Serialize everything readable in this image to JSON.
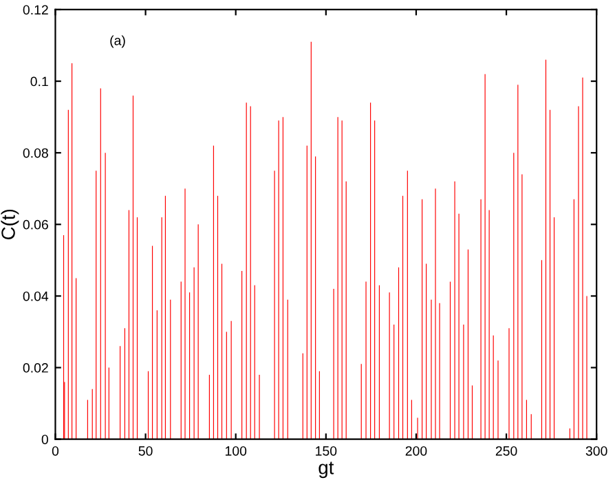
{
  "chart_data": {
    "type": "bar",
    "xlabel": "gt",
    "ylabel": "C(t)",
    "annotations": [
      "(a)"
    ],
    "x": [
      4.6,
      5.1,
      7.2,
      9.2,
      11.5,
      17.9,
      20.5,
      22.6,
      25.1,
      27.7,
      29.7,
      35.9,
      38.5,
      40.8,
      43.1,
      45.4,
      51.5,
      53.8,
      56.4,
      59.0,
      61.0,
      63.8,
      69.7,
      71.9,
      74.4,
      76.9,
      79.2,
      85.4,
      87.7,
      90.0,
      92.3,
      94.9,
      97.5,
      103.4,
      105.9,
      108.2,
      110.5,
      113.1,
      121.5,
      123.8,
      126.2,
      128.8,
      137.2,
      139.5,
      141.8,
      144.2,
      146.4,
      154.3,
      156.6,
      158.9,
      161.2,
      169.6,
      172.2,
      174.7,
      177.0,
      179.6,
      185.2,
      187.7,
      190.3,
      192.6,
      195.2,
      197.5,
      200.8,
      203.3,
      205.6,
      208.4,
      210.7,
      213.0,
      218.9,
      221.4,
      223.7,
      226.3,
      228.8,
      231.1,
      235.9,
      238.2,
      240.5,
      242.8,
      245.4,
      251.5,
      254.1,
      256.4,
      258.7,
      261.2,
      263.8,
      269.6,
      271.9,
      274.2,
      276.5,
      285.2,
      287.5,
      290.0,
      292.3,
      294.6
    ],
    "values": [
      0.057,
      0.016,
      0.092,
      0.105,
      0.045,
      0.011,
      0.014,
      0.075,
      0.098,
      0.08,
      0.02,
      0.026,
      0.031,
      0.064,
      0.096,
      0.062,
      0.019,
      0.054,
      0.036,
      0.062,
      0.068,
      0.039,
      0.044,
      0.07,
      0.041,
      0.048,
      0.06,
      0.018,
      0.082,
      0.068,
      0.049,
      0.03,
      0.033,
      0.047,
      0.094,
      0.093,
      0.043,
      0.018,
      0.075,
      0.089,
      0.09,
      0.039,
      0.024,
      0.082,
      0.111,
      0.079,
      0.019,
      0.042,
      0.09,
      0.089,
      0.072,
      0.021,
      0.044,
      0.094,
      0.089,
      0.043,
      0.041,
      0.032,
      0.048,
      0.068,
      0.075,
      0.011,
      0.006,
      0.067,
      0.049,
      0.039,
      0.07,
      0.038,
      0.044,
      0.072,
      0.063,
      0.032,
      0.053,
      0.015,
      0.067,
      0.102,
      0.064,
      0.029,
      0.022,
      0.031,
      0.08,
      0.099,
      0.074,
      0.011,
      0.007,
      0.05,
      0.106,
      0.092,
      0.062,
      0.003,
      0.067,
      0.093,
      0.101,
      0.04
    ],
    "color": "#ff0000",
    "xlim": [
      0,
      300
    ],
    "xticks": [
      0,
      50,
      100,
      150,
      200,
      250,
      300
    ],
    "ylim": [
      0,
      0.12
    ],
    "yticks": [
      0,
      0.02,
      0.04,
      0.06,
      0.08,
      0.1,
      0.12
    ],
    "grid": false,
    "legend": false
  }
}
